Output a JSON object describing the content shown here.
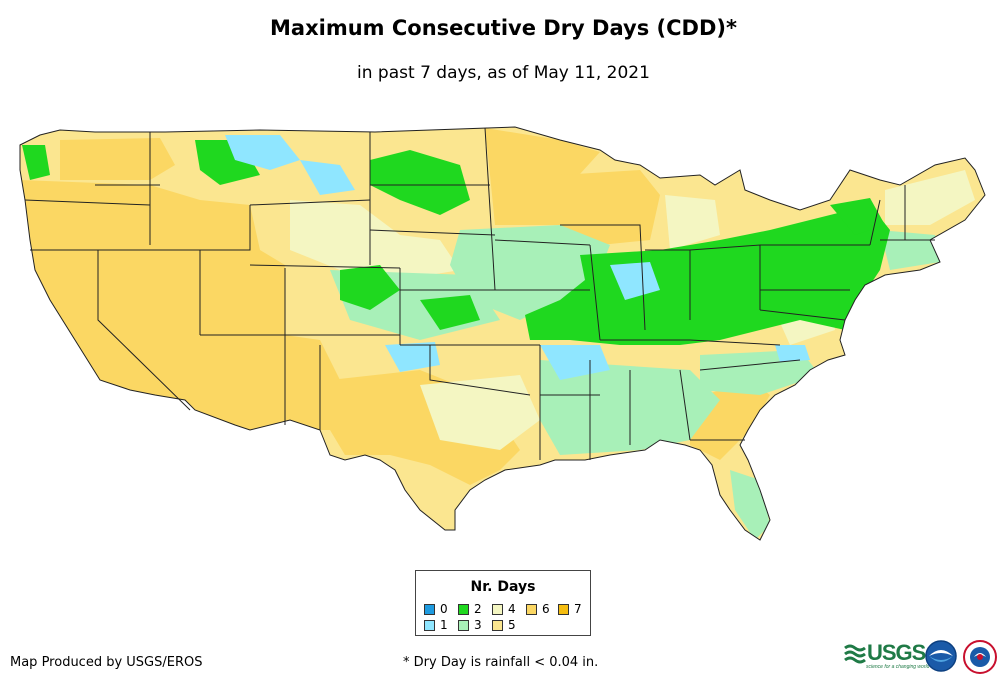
{
  "title": "Maximum Consecutive Dry Days (CDD)*",
  "subtitle": "in past 7 days, as of May 11, 2021",
  "legend": {
    "title": "Nr. Days",
    "items": [
      {
        "label": "0",
        "color": "#1e9be0"
      },
      {
        "label": "1",
        "color": "#8fe6ff"
      },
      {
        "label": "2",
        "color": "#1fd81f"
      },
      {
        "label": "3",
        "color": "#a8f0b8"
      },
      {
        "label": "4",
        "color": "#f4f6c2"
      },
      {
        "label": "5",
        "color": "#fbe690"
      },
      {
        "label": "6",
        "color": "#fbd763"
      },
      {
        "label": "7",
        "color": "#f5bd10"
      }
    ]
  },
  "credit": "Map Produced by USGS/EROS",
  "footnote": "* Dry Day is rainfall < 0.04 in.",
  "logos": {
    "usgs": "USGS",
    "usgs_tagline": "science for a changing world",
    "noaa": "noaa-logo",
    "nws": "nws-logo"
  },
  "colors": {
    "border": "#222222",
    "water": "#ffffff"
  }
}
